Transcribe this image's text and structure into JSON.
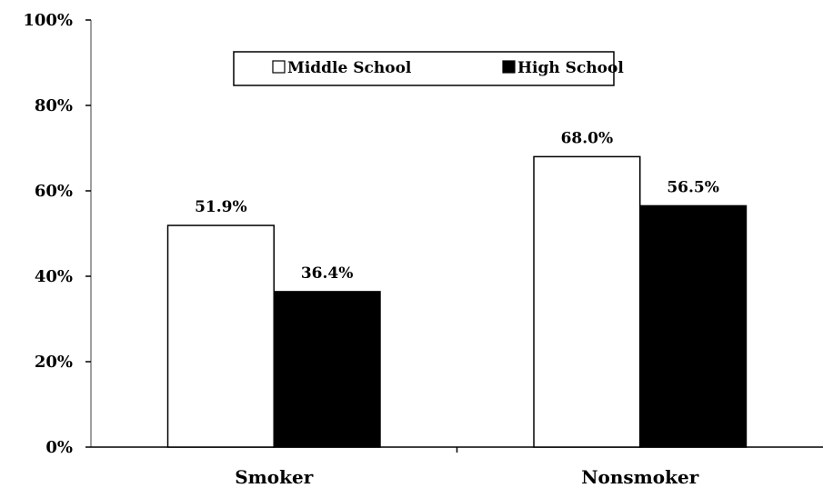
{
  "chart_data": {
    "type": "bar",
    "categories": [
      "Smoker",
      "Nonsmoker"
    ],
    "series": [
      {
        "name": "Middle School",
        "values": [
          51.9,
          68.0
        ],
        "labels": [
          "51.9%",
          "68.0%"
        ],
        "color": "#ffffff"
      },
      {
        "name": "High School",
        "values": [
          36.4,
          56.5
        ],
        "labels": [
          "36.4%",
          "56.5%"
        ],
        "color": "#000000"
      }
    ],
    "ylim": [
      0,
      100
    ],
    "yticks": [
      0,
      20,
      40,
      60,
      80,
      100
    ],
    "ytick_labels": [
      "0%",
      "20%",
      "40%",
      "60%",
      "80%",
      "100%"
    ],
    "title": "",
    "xlabel": "",
    "ylabel": "",
    "grid": false,
    "legend_position": "top-center"
  }
}
